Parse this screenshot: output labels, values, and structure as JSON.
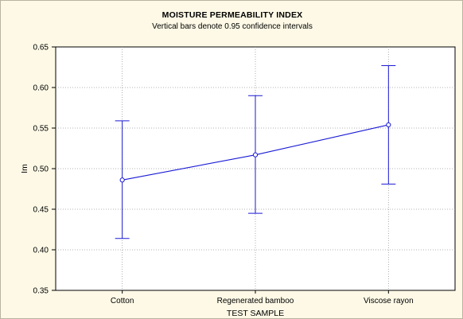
{
  "chart_data": {
    "type": "line",
    "title": "MOISTURE PERMEABILITY INDEX",
    "subtitle": "Vertical bars denote 0.95 confidence intervals",
    "xlabel": "TEST SAMPLE",
    "ylabel": "Im",
    "ylim": [
      0.35,
      0.65
    ],
    "yticks": [
      "0.35",
      "0.40",
      "0.45",
      "0.50",
      "0.55",
      "0.60",
      "0.65"
    ],
    "categories": [
      "Cotton",
      "Regenerated bamboo",
      "Viscose rayon"
    ],
    "series": [
      {
        "values": [
          0.486,
          0.517,
          0.554
        ],
        "ci_lower": [
          0.414,
          0.445,
          0.481
        ],
        "ci_upper": [
          0.559,
          0.59,
          0.627
        ]
      }
    ],
    "grid": true,
    "colors": {
      "line": "#1a1ad6",
      "background": "#fdf9e6",
      "plot_background": "#ffffff",
      "grid": "#9a9a9a"
    }
  }
}
